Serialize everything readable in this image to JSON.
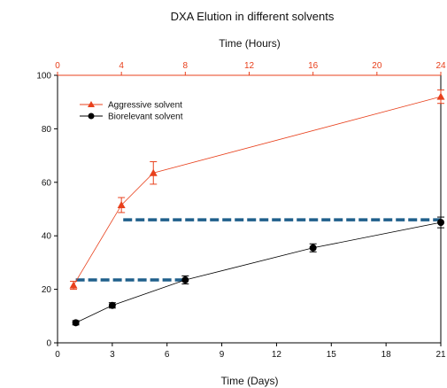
{
  "chart_data": {
    "type": "line",
    "title": "DXA Elution in different solvents",
    "xlabel": "Time (Days)",
    "ylabel": "",
    "x_ticks": [
      0,
      3,
      6,
      9,
      12,
      15,
      18,
      21
    ],
    "xlim": [
      0,
      21
    ],
    "y_ticks": [
      0,
      20,
      40,
      60,
      80,
      100
    ],
    "ylim": [
      0,
      100
    ],
    "top_axis": {
      "label": "Time (Hours)",
      "ticks": [
        0,
        4,
        8,
        12,
        16,
        20,
        24
      ],
      "range": [
        0,
        24
      ],
      "color": "#e8401c"
    },
    "grid": false,
    "legend_position": "top-left",
    "series": [
      {
        "name": "Aggressive solvent",
        "axis": "top",
        "unit": "hours",
        "marker": "triangle",
        "color": "#e8401c",
        "x": [
          1,
          4,
          6,
          24
        ],
        "y": [
          21.5,
          51.5,
          63.5,
          92
        ],
        "err": [
          1.5,
          2.8,
          4.2,
          2.5
        ]
      },
      {
        "name": "Biorelevant solvent",
        "axis": "bottom",
        "unit": "days",
        "marker": "circle",
        "color": "#000000",
        "x": [
          1,
          3,
          7,
          14,
          21
        ],
        "y": [
          7.5,
          14,
          23.5,
          35.5,
          45
        ],
        "err": [
          0.8,
          1,
          1.5,
          1.5,
          2
        ]
      }
    ],
    "reference_lines": [
      {
        "x_start": 1,
        "x_end": 7,
        "y": 23.5,
        "color": "#1f5f8b",
        "style": "dashed"
      },
      {
        "x_start": 3.6,
        "x_end": 21,
        "y": 46,
        "color": "#1f5f8b",
        "style": "dashed"
      }
    ]
  }
}
